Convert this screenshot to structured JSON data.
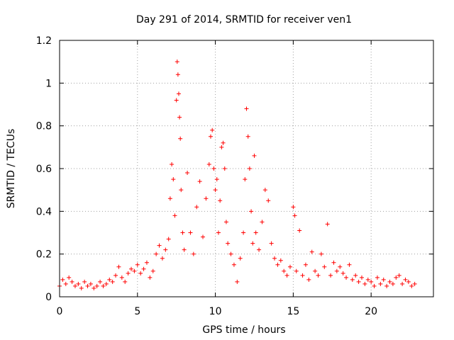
{
  "chart_data": {
    "type": "scatter",
    "title": "Day 291 of 2014, SRMTID for receiver ven1",
    "xlabel": "GPS time / hours",
    "ylabel": "SRMTID / TECUs",
    "xlim": [
      0,
      24
    ],
    "ylim": [
      0,
      1.2
    ],
    "x_ticks": [
      0,
      5,
      10,
      15,
      20
    ],
    "x_tick_labels": [
      "0",
      "5",
      "10",
      "15",
      "20"
    ],
    "y_ticks": [
      0,
      0.2,
      0.4,
      0.6,
      0.8,
      1,
      1.2
    ],
    "y_tick_labels": [
      "0",
      "0.2",
      "0.4",
      "0.6",
      "0.8",
      "1",
      "1.2"
    ],
    "grid": true,
    "marker": "plus",
    "marker_color": "#ff0000",
    "series": [
      {
        "name": "ven1",
        "x": [
          0.0,
          0.2,
          0.4,
          0.6,
          0.8,
          1.0,
          1.2,
          1.4,
          1.6,
          1.8,
          2.0,
          2.2,
          2.4,
          2.6,
          2.8,
          3.0,
          3.2,
          3.4,
          3.6,
          3.8,
          4.0,
          4.2,
          4.4,
          4.6,
          4.8,
          5.0,
          5.2,
          5.4,
          5.6,
          5.8,
          6.0,
          6.2,
          6.4,
          6.6,
          6.8,
          7.0,
          7.1,
          7.2,
          7.3,
          7.4,
          7.5,
          7.55,
          7.6,
          7.65,
          7.7,
          7.75,
          7.8,
          7.9,
          8.0,
          8.2,
          8.4,
          8.6,
          8.8,
          9.0,
          9.2,
          9.4,
          9.6,
          9.7,
          9.8,
          9.9,
          10.0,
          10.1,
          10.2,
          10.3,
          10.4,
          10.5,
          10.6,
          10.7,
          10.8,
          11.0,
          11.2,
          11.4,
          11.6,
          11.8,
          11.9,
          12.0,
          12.1,
          12.2,
          12.3,
          12.4,
          12.5,
          12.6,
          12.8,
          13.0,
          13.2,
          13.4,
          13.6,
          13.8,
          14.0,
          14.2,
          14.4,
          14.6,
          14.8,
          15.0,
          15.1,
          15.2,
          15.4,
          15.6,
          15.8,
          16.0,
          16.2,
          16.4,
          16.6,
          16.8,
          17.0,
          17.2,
          17.4,
          17.6,
          17.8,
          18.0,
          18.2,
          18.4,
          18.6,
          18.8,
          19.0,
          19.2,
          19.4,
          19.6,
          19.8,
          20.0,
          20.2,
          20.4,
          20.6,
          20.8,
          21.0,
          21.2,
          21.4,
          21.6,
          21.8,
          22.0,
          22.2,
          22.4,
          22.6,
          22.8
        ],
        "y": [
          0.05,
          0.08,
          0.06,
          0.09,
          0.07,
          0.05,
          0.06,
          0.04,
          0.07,
          0.05,
          0.06,
          0.04,
          0.05,
          0.07,
          0.05,
          0.06,
          0.08,
          0.07,
          0.1,
          0.14,
          0.09,
          0.07,
          0.11,
          0.13,
          0.12,
          0.15,
          0.11,
          0.13,
          0.16,
          0.09,
          0.12,
          0.2,
          0.24,
          0.18,
          0.22,
          0.27,
          0.46,
          0.62,
          0.55,
          0.38,
          0.92,
          1.1,
          1.04,
          0.95,
          0.84,
          0.74,
          0.5,
          0.3,
          0.22,
          0.58,
          0.3,
          0.2,
          0.42,
          0.54,
          0.28,
          0.46,
          0.62,
          0.75,
          0.78,
          0.6,
          0.5,
          0.55,
          0.3,
          0.45,
          0.7,
          0.72,
          0.6,
          0.35,
          0.25,
          0.2,
          0.15,
          0.07,
          0.18,
          0.3,
          0.55,
          0.88,
          0.75,
          0.6,
          0.4,
          0.25,
          0.66,
          0.3,
          0.22,
          0.35,
          0.5,
          0.45,
          0.25,
          0.18,
          0.15,
          0.17,
          0.12,
          0.1,
          0.14,
          0.42,
          0.38,
          0.12,
          0.31,
          0.1,
          0.15,
          0.08,
          0.21,
          0.12,
          0.1,
          0.2,
          0.14,
          0.34,
          0.1,
          0.16,
          0.12,
          0.14,
          0.11,
          0.09,
          0.15,
          0.08,
          0.1,
          0.07,
          0.09,
          0.06,
          0.08,
          0.07,
          0.05,
          0.09,
          0.06,
          0.08,
          0.05,
          0.07,
          0.06,
          0.09,
          0.1,
          0.06,
          0.08,
          0.07,
          0.05,
          0.06
        ]
      }
    ]
  }
}
